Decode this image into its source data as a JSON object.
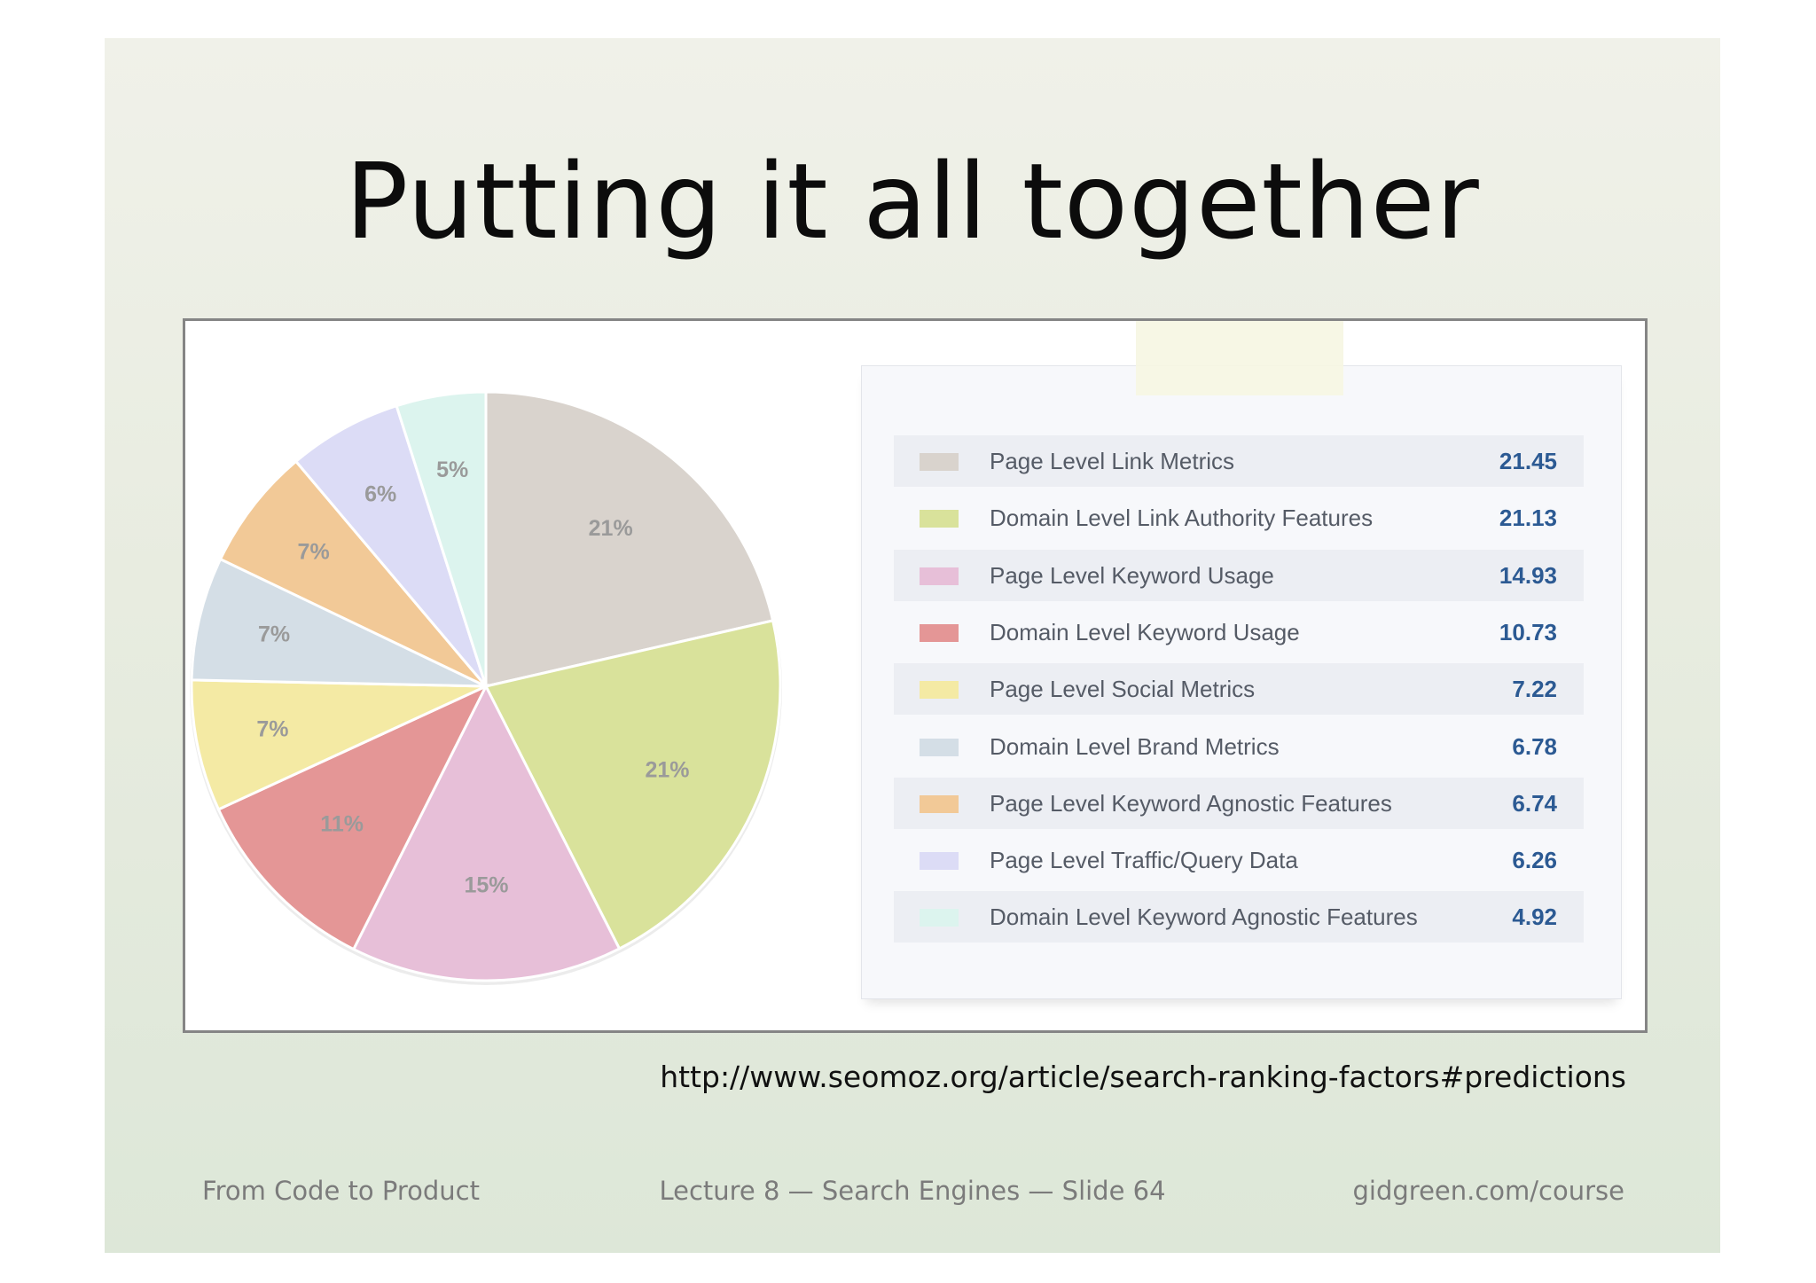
{
  "slide": {
    "title": "Putting it all together",
    "source_url": "http://www.seomoz.org/article/search-ranking-factors#predictions",
    "footer": {
      "left": "From Code to Product",
      "center": "Lecture 8 — Search Engines — Slide 64",
      "right": "gidgreen.com/course"
    }
  },
  "chart_data": {
    "type": "pie",
    "title": "",
    "legend_placement": "right",
    "slices": [
      {
        "name": "Page Level Link Metrics",
        "value": 21.45,
        "label": "21%",
        "color": "#d9d3cd"
      },
      {
        "name": "Domain Level Link Authority Features",
        "value": 21.13,
        "label": "21%",
        "color": "#d9e29b"
      },
      {
        "name": "Page Level Keyword Usage",
        "value": 14.93,
        "label": "15%",
        "color": "#e7bfd8"
      },
      {
        "name": "Domain Level Keyword Usage",
        "value": 10.73,
        "label": "11%",
        "color": "#e49696"
      },
      {
        "name": "Page Level Social Metrics",
        "value": 7.22,
        "label": "7%",
        "color": "#f4eaa4"
      },
      {
        "name": "Domain Level Brand Metrics",
        "value": 6.78,
        "label": "7%",
        "color": "#d4dee6"
      },
      {
        "name": "Page Level Keyword Agnostic Features",
        "value": 6.74,
        "label": "7%",
        "color": "#f2c997"
      },
      {
        "name": "Page Level Traffic/Query Data",
        "value": 6.26,
        "label": "6%",
        "color": "#dcdcf6"
      },
      {
        "name": "Domain Level Keyword Agnostic Features",
        "value": 4.92,
        "label": "5%",
        "color": "#dcf4ee"
      }
    ]
  }
}
